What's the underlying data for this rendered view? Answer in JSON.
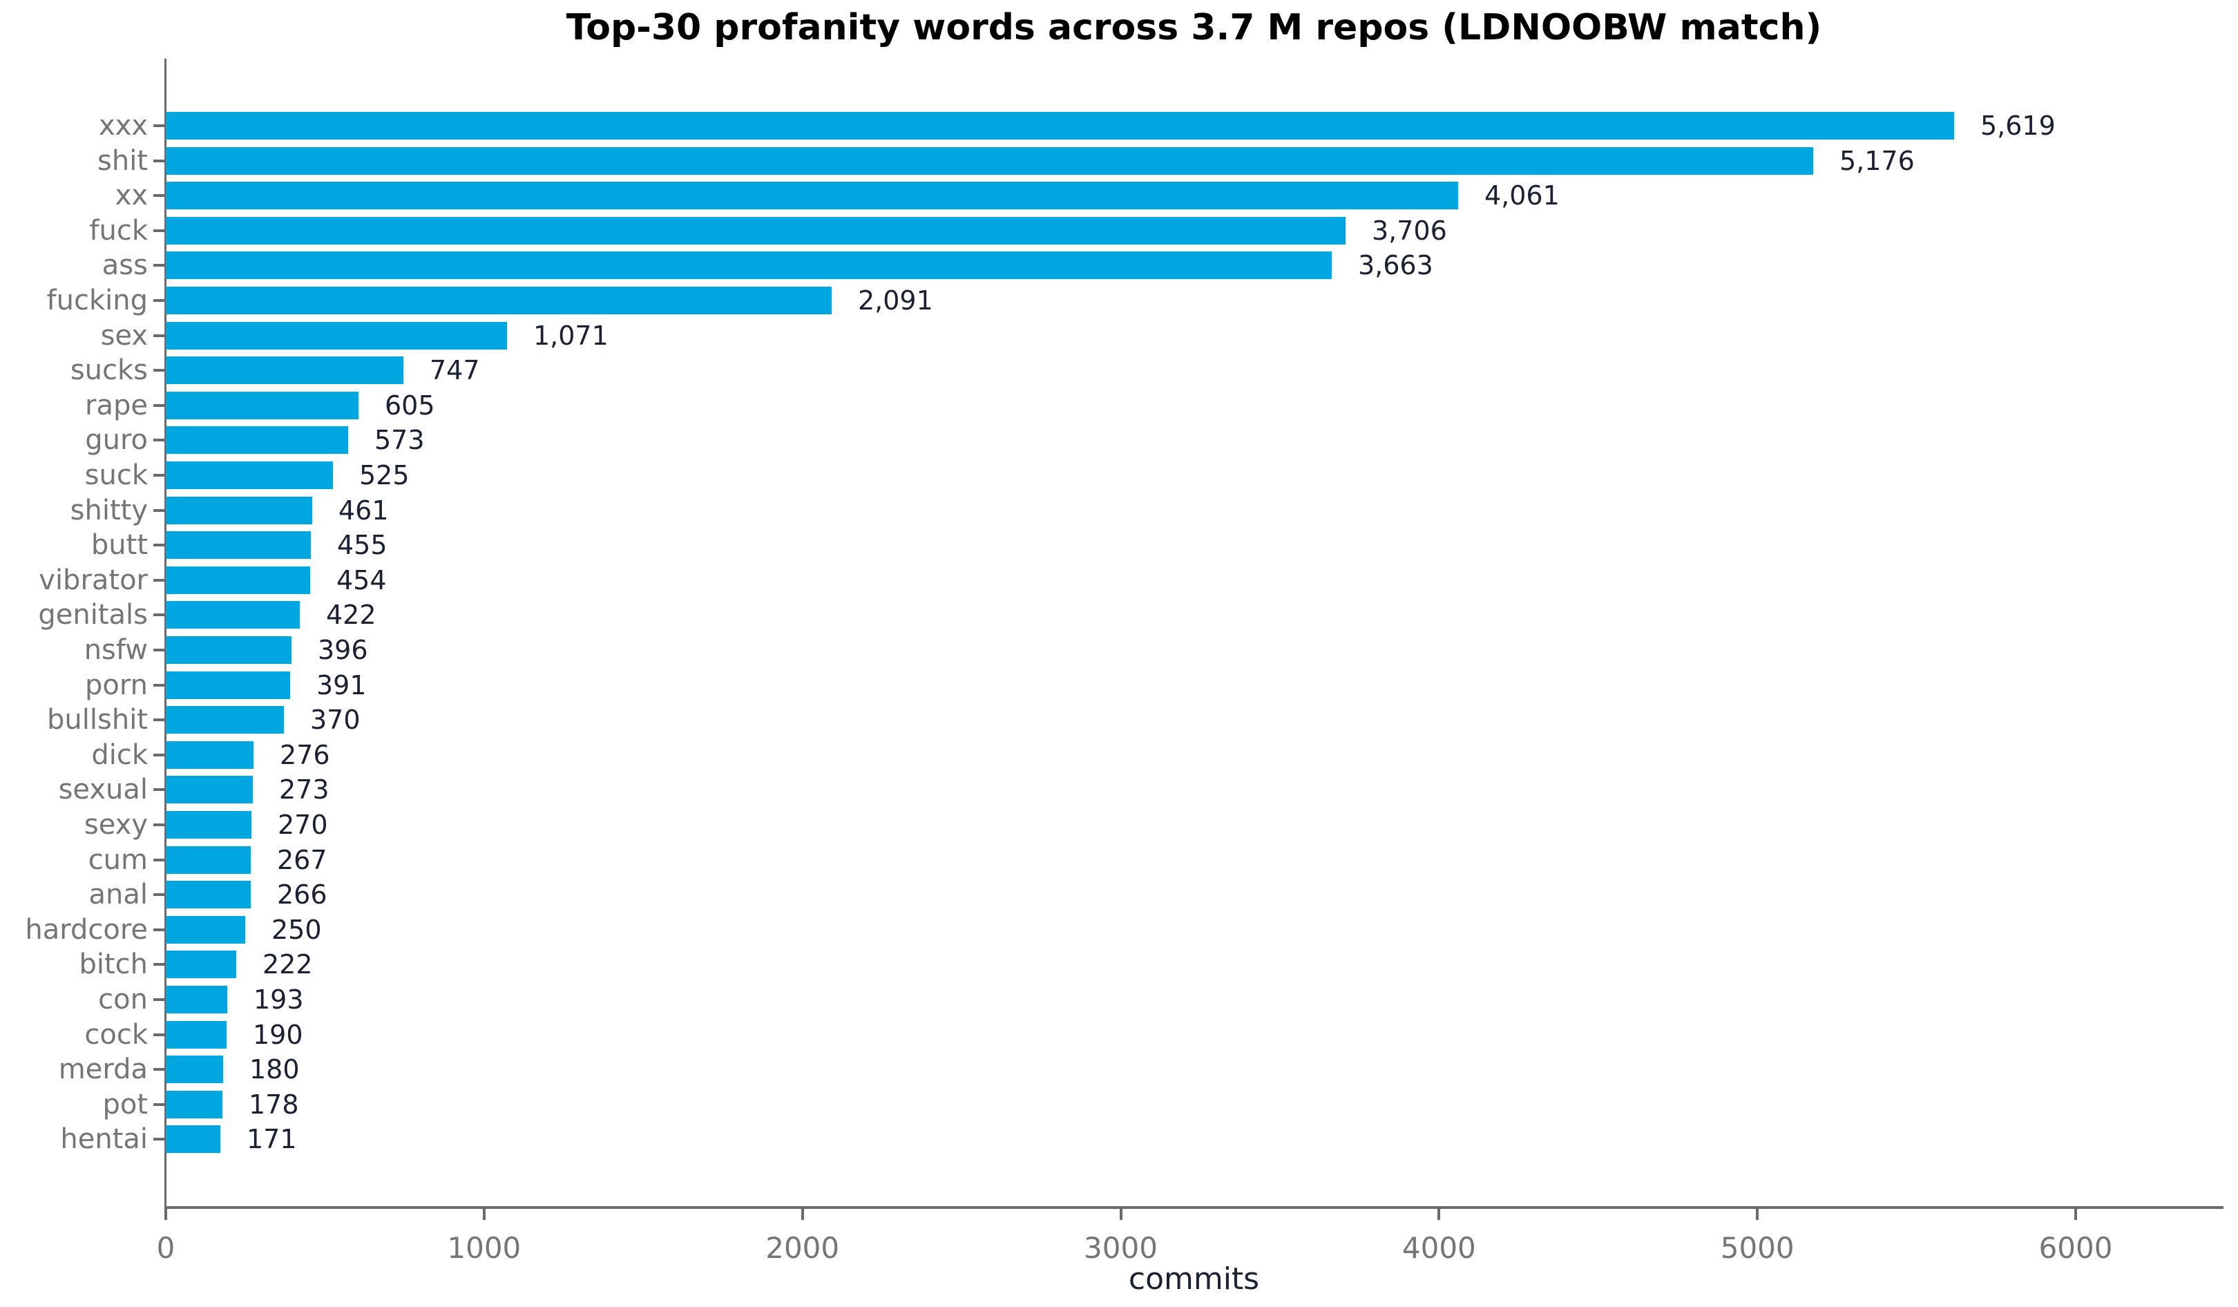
{
  "chart_data": {
    "type": "bar",
    "orientation": "horizontal",
    "title": "Top-30 profanity words across 3.7 M repos (LDNOOBW match)",
    "xlabel": "commits",
    "categories": [
      "xxx",
      "shit",
      "xx",
      "fuck",
      "ass",
      "fucking",
      "sex",
      "sucks",
      "rape",
      "guro",
      "suck",
      "shitty",
      "butt",
      "vibrator",
      "genitals",
      "nsfw",
      "porn",
      "bullshit",
      "dick",
      "sexual",
      "sexy",
      "cum",
      "anal",
      "hardcore",
      "bitch",
      "con",
      "cock",
      "merda",
      "pot",
      "hentai"
    ],
    "values": [
      5619,
      5176,
      4061,
      3706,
      3663,
      2091,
      1071,
      747,
      605,
      573,
      525,
      461,
      455,
      454,
      422,
      396,
      391,
      370,
      276,
      273,
      270,
      267,
      266,
      250,
      222,
      193,
      190,
      180,
      178,
      171
    ],
    "values_formatted": [
      "5,619",
      "5,176",
      "4,061",
      "3,706",
      "3,663",
      "2,091",
      "1,071",
      "747",
      "605",
      "573",
      "525",
      "461",
      "455",
      "454",
      "422",
      "396",
      "391",
      "370",
      "276",
      "273",
      "270",
      "267",
      "266",
      "250",
      "222",
      "193",
      "190",
      "180",
      "178",
      "171"
    ],
    "xticks": [
      0,
      1000,
      2000,
      3000,
      4000,
      5000,
      6000
    ],
    "xtick_labels": [
      "0",
      "1000",
      "2000",
      "3000",
      "4000",
      "5000",
      "6000"
    ],
    "xlim": [
      0,
      6460
    ],
    "grid": false,
    "legend": null,
    "colors": {
      "bar": "#00A6DF",
      "value_label": "#1b2033",
      "category_label": "#757575",
      "tick_label": "#757575",
      "axis": "#6a6a6a",
      "xlabel": "#1b2033",
      "title": "#000000",
      "background": "#ffffff"
    }
  }
}
